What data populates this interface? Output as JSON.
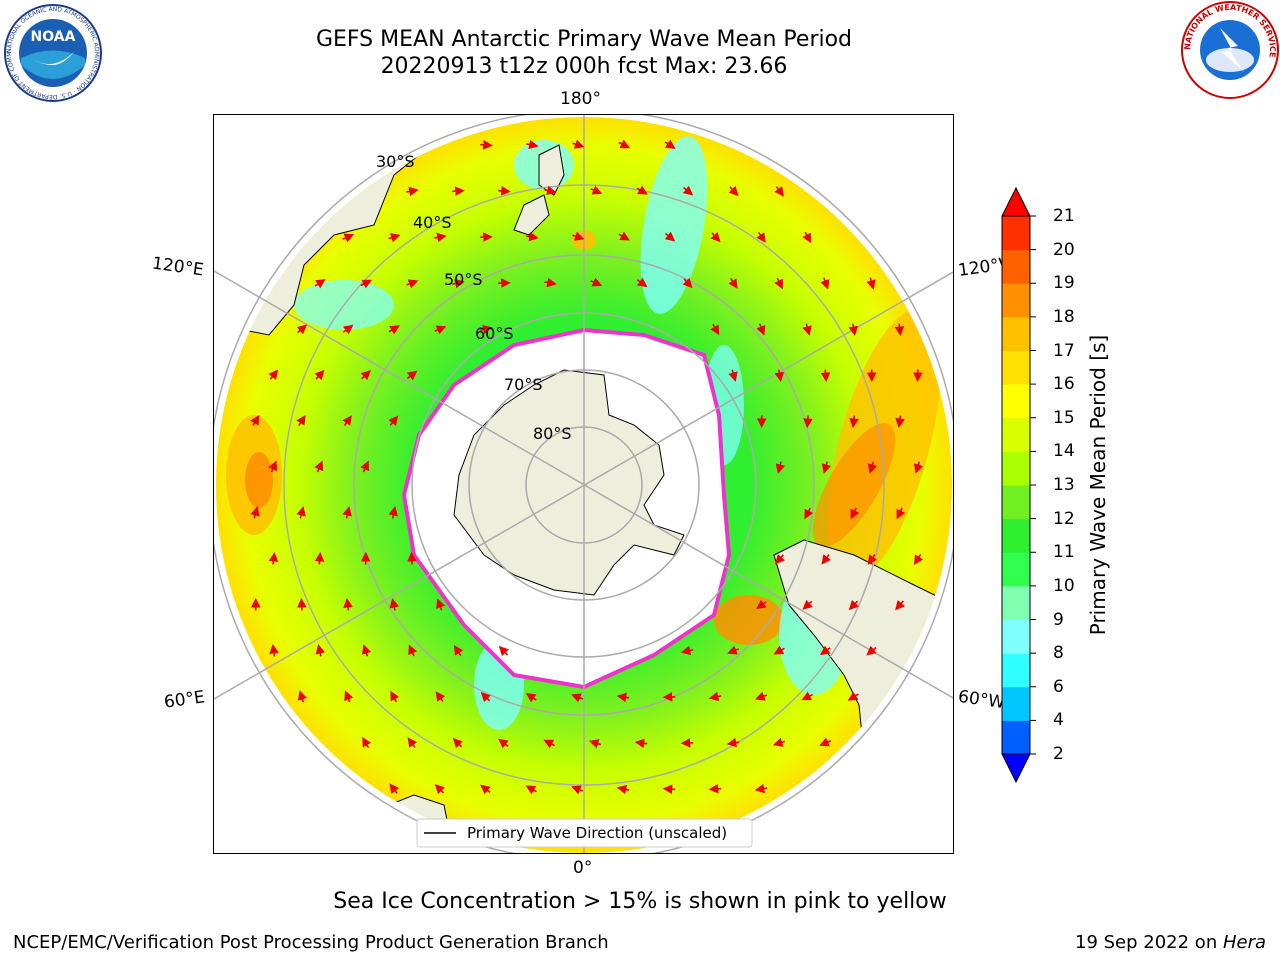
{
  "header": {
    "title_line1": "GEFS MEAN Antarctic Primary Wave Mean Period",
    "title_line2": "20220913 t12z 000h fcst   Max: 23.66"
  },
  "logos": {
    "noaa_text": "NOAA",
    "noaa_ring": "NATIONAL OCEANIC AND ATMOSPHERIC ADMINISTRATION · U.S. DEPARTMENT OF COMMERCE",
    "nws_ring": "NATIONAL WEATHER SERVICE"
  },
  "map": {
    "lon_labels": {
      "top": "180°",
      "bottom": "0°",
      "left_upper": "120°E",
      "left_lower": "60°E",
      "right_upper": "120°W",
      "right_lower": "60°W"
    },
    "lat_labels": [
      "30°S",
      "40°S",
      "50°S",
      "60°S",
      "70°S",
      "80°S"
    ],
    "legend_label": "Primary Wave Direction (unscaled)",
    "colors": {
      "land": "#eeeedc",
      "ice": "#ffffff",
      "ice_edge": "#ee33cc",
      "arrow": "#ee0000"
    }
  },
  "colorbar": {
    "title": "Primary Wave Mean Period [s]",
    "ticks": [
      "21",
      "20",
      "19",
      "18",
      "17",
      "16",
      "15",
      "14",
      "13",
      "12",
      "11",
      "10",
      "9",
      "8",
      "6",
      "4",
      "2"
    ],
    "colors": [
      "#0000ff",
      "#0060ff",
      "#00c8ff",
      "#30ffff",
      "#80ffff",
      "#80ffb0",
      "#30ff50",
      "#30ee30",
      "#70f020",
      "#aaff00",
      "#d8ff00",
      "#ffff00",
      "#ffe000",
      "#ffc000",
      "#ff9000",
      "#ff6000",
      "#ff3000",
      "#ff0000"
    ]
  },
  "note": "Sea Ice Concentration > 15% is shown in pink to yellow",
  "footer": {
    "left": "NCEP/EMC/Verification Post Processing Product Generation Branch",
    "date": "19 Sep 2022 on ",
    "machine": "Hera"
  }
}
